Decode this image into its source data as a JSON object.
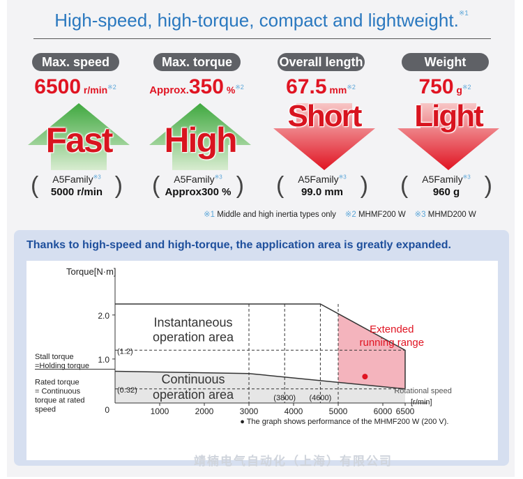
{
  "header": {
    "title": "High-speed, high-torque, compact and lightweight.",
    "note_mark": "※1"
  },
  "specs": [
    {
      "label": "Max. speed",
      "value": "6500",
      "prefix": "",
      "unit": "r/min",
      "note": "※2",
      "arrow_word": "Fast",
      "arrow_dir": "up",
      "compare_family": "A5Family",
      "compare_note": "※3",
      "compare_value": "5000 r/min"
    },
    {
      "label": "Max. torque",
      "value": "350",
      "prefix": "Approx.",
      "unit": "%",
      "note": "※2",
      "arrow_word": "High",
      "arrow_dir": "up",
      "compare_family": "A5Family",
      "compare_note": "※3",
      "compare_value": "Approx300 %"
    },
    {
      "label": "Overall length",
      "value": "67.5",
      "prefix": "",
      "unit": "mm",
      "note": "※2",
      "arrow_word": "Short",
      "arrow_dir": "down",
      "compare_family": "A5Family",
      "compare_note": "※3",
      "compare_value": "99.0 mm"
    },
    {
      "label": "Weight",
      "value": "750",
      "prefix": "",
      "unit": "g",
      "note": "※2",
      "arrow_word": "Light",
      "arrow_dir": "down",
      "compare_family": "A5Family",
      "compare_note": "※3",
      "compare_value": "960 g"
    }
  ],
  "notes": [
    {
      "mark": "※1",
      "text": "Middle and high inertia types only"
    },
    {
      "mark": "※2",
      "text": "MHMF200 W"
    },
    {
      "mark": "※3",
      "text": "MHMD200 W"
    }
  ],
  "panel": {
    "heading": "Thanks to high-speed and high-torque, the application area is greatly expanded.",
    "footnote": "● The graph shows performance of the MHMF200 W (200 V)."
  },
  "chart_data": {
    "type": "area",
    "ylabel": "Torque[N·m]",
    "xlabel": "Rotational speed [r/min]",
    "x_ticks": [
      "0",
      "1000",
      "2000",
      "3000",
      "4000",
      "5000",
      "6000",
      "6500"
    ],
    "x_tick_values": [
      0,
      1000,
      2000,
      3000,
      4000,
      5000,
      6000,
      6500
    ],
    "x_marks": [
      "(3800)",
      "(4600)"
    ],
    "x_mark_values": [
      3800,
      4600
    ],
    "y_ticks": [
      "0",
      "1.0",
      "2.0"
    ],
    "y_tick_values": [
      0,
      1.0,
      2.0
    ],
    "y_marks": [
      "(1.2)",
      "(0.32)"
    ],
    "y_mark_values": [
      1.2,
      0.32
    ],
    "xlim": [
      0,
      7000
    ],
    "ylim": [
      0,
      2.6
    ],
    "series": [
      {
        "name": "Instantaneous operation area",
        "x": [
          0,
          4600,
          6500,
          6500
        ],
        "y": [
          2.25,
          2.25,
          1.2,
          0.32
        ]
      },
      {
        "name": "Continuous operation area",
        "x": [
          0,
          3000,
          6500
        ],
        "y": [
          0.72,
          0.67,
          0.32
        ]
      }
    ],
    "extended_range": {
      "x": [
        5000,
        6500
      ],
      "label": "Extended running range"
    },
    "labels": {
      "instantaneous": "Instantaneous operation area",
      "continuous": "Continuous operation area",
      "extended": "Extended running range",
      "stall": "Stall torque =Holding torque",
      "rated": "Rated torque = Continuous torque at rated speed"
    },
    "colors": {
      "extended_fill": "#f4b4bd",
      "continuous_fill": "#e6e6e6",
      "dot": "#e01422",
      "extended_text": "#e01422"
    }
  },
  "watermark": "靖楠电气自动化（上海）有限公司"
}
